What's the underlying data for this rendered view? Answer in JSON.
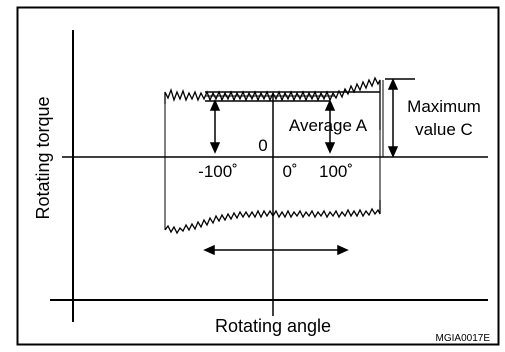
{
  "figure": {
    "x_axis_label": "Rotating angle",
    "y_axis_label": "Rotating torque",
    "zero_label": "0",
    "tick_neg": "-100˚",
    "tick_zero": "0˚",
    "tick_pos": "100˚",
    "average_label": "Average A",
    "maximum_label_line1": "Maximum",
    "maximum_label_line2": "value C",
    "figure_id": "MGIA0017E"
  }
}
